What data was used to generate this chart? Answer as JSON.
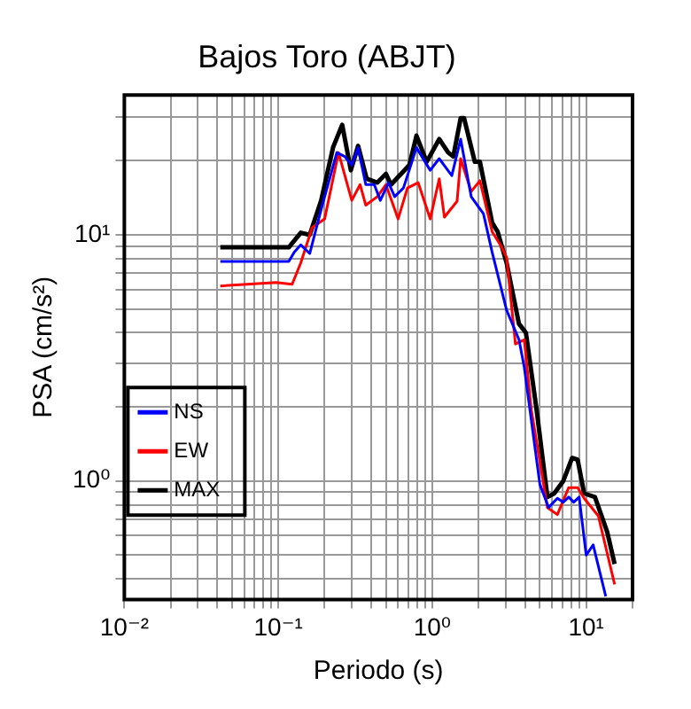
{
  "chart_data": {
    "type": "line",
    "title": "Bajos Toro (ABJT)",
    "xlabel": "Periodo (s)",
    "ylabel": "PSA (cm/s²)",
    "log": "xy",
    "grid": true,
    "legend": "bottom left",
    "marker": "none",
    "line_style": "solid",
    "xlim": [
      0.01,
      20
    ],
    "ylim": [
      0.33,
      37
    ],
    "xticks": [
      {
        "value": 0.01,
        "label": "10⁻²"
      },
      {
        "value": 0.02,
        "label": null
      },
      {
        "value": 0.03,
        "label": null
      },
      {
        "value": 0.04,
        "label": null
      },
      {
        "value": 0.05,
        "label": null
      },
      {
        "value": 0.06,
        "label": null
      },
      {
        "value": 0.07,
        "label": null
      },
      {
        "value": 0.08,
        "label": null
      },
      {
        "value": 0.09,
        "label": null
      },
      {
        "value": 0.1,
        "label": "10⁻¹"
      },
      {
        "value": 0.2,
        "label": null
      },
      {
        "value": 0.3,
        "label": null
      },
      {
        "value": 0.4,
        "label": null
      },
      {
        "value": 0.5,
        "label": null
      },
      {
        "value": 0.6,
        "label": null
      },
      {
        "value": 0.7,
        "label": null
      },
      {
        "value": 0.8,
        "label": null
      },
      {
        "value": 0.9,
        "label": null
      },
      {
        "value": 1,
        "label": "10⁰"
      },
      {
        "value": 2,
        "label": null
      },
      {
        "value": 3,
        "label": null
      },
      {
        "value": 4,
        "label": null
      },
      {
        "value": 5,
        "label": null
      },
      {
        "value": 6,
        "label": null
      },
      {
        "value": 7,
        "label": null
      },
      {
        "value": 8,
        "label": null
      },
      {
        "value": 9,
        "label": null
      },
      {
        "value": 10,
        "label": "10¹"
      },
      {
        "value": 20,
        "label": null
      }
    ],
    "yticks": [
      {
        "value": 0.4,
        "label": null
      },
      {
        "value": 0.5,
        "label": null
      },
      {
        "value": 0.6,
        "label": null
      },
      {
        "value": 0.7,
        "label": null
      },
      {
        "value": 0.8,
        "label": null
      },
      {
        "value": 0.9,
        "label": null
      },
      {
        "value": 1,
        "label": "10⁰"
      },
      {
        "value": 2,
        "label": null
      },
      {
        "value": 3,
        "label": null
      },
      {
        "value": 4,
        "label": null
      },
      {
        "value": 5,
        "label": null
      },
      {
        "value": 6,
        "label": null
      },
      {
        "value": 7,
        "label": null
      },
      {
        "value": 8,
        "label": null
      },
      {
        "value": 9,
        "label": null
      },
      {
        "value": 10,
        "label": "10¹"
      },
      {
        "value": 20,
        "label": null
      },
      {
        "value": 30,
        "label": null
      }
    ],
    "series": [
      {
        "name": "NS",
        "color": "#0000ff",
        "x": [
          0.042,
          0.117,
          0.127,
          0.14,
          0.16,
          0.19,
          0.24,
          0.27,
          0.3,
          0.33,
          0.37,
          0.42,
          0.46,
          0.52,
          0.57,
          0.65,
          0.79,
          0.97,
          1.11,
          1.34,
          1.53,
          1.79,
          2.15,
          2.45,
          3.04,
          3.66,
          3.96,
          5.0,
          5.7,
          6.5,
          7.1,
          7.7,
          8.3,
          9.0,
          10.0,
          11.1,
          13.4
        ],
        "values": [
          7.8,
          7.8,
          8.5,
          9.1,
          8.4,
          12.7,
          21.6,
          20.8,
          19.2,
          22.6,
          16,
          16,
          13.8,
          16.3,
          14.3,
          15.5,
          22.6,
          18.3,
          20.4,
          17.4,
          24.5,
          14.3,
          12.2,
          8.5,
          4.95,
          3.75,
          2.9,
          0.97,
          0.78,
          0.85,
          0.82,
          0.86,
          0.82,
          0.86,
          0.5,
          0.55,
          0.34
        ]
      },
      {
        "name": "EW",
        "color": "#ff0000",
        "x": [
          0.042,
          0.097,
          0.123,
          0.14,
          0.166,
          0.2,
          0.246,
          0.3,
          0.34,
          0.37,
          0.44,
          0.5,
          0.6,
          0.69,
          0.81,
          0.97,
          1.11,
          1.2,
          1.45,
          1.53,
          1.79,
          2.04,
          2.45,
          2.8,
          3.04,
          3.47,
          3.96,
          4.4,
          5.6,
          6.5,
          7.7,
          8.8,
          9.7,
          12.0,
          15.3
        ],
        "values": [
          6.2,
          6.4,
          6.3,
          7.7,
          10.7,
          11.6,
          21.6,
          13.8,
          16,
          13.2,
          14.3,
          16,
          11.6,
          15.5,
          16.3,
          11.6,
          16.9,
          11.8,
          13.7,
          20.4,
          15,
          16.6,
          10.3,
          9,
          8.1,
          3.6,
          3.75,
          1.95,
          0.78,
          0.73,
          0.94,
          0.94,
          0.85,
          0.72,
          0.38
        ]
      },
      {
        "name": "MAX",
        "color": "#000000",
        "x": [
          0.042,
          0.117,
          0.14,
          0.16,
          0.19,
          0.227,
          0.26,
          0.296,
          0.33,
          0.375,
          0.44,
          0.5,
          0.54,
          0.71,
          0.79,
          0.92,
          1.11,
          1.27,
          1.37,
          1.53,
          1.61,
          1.89,
          2.04,
          2.45,
          2.66,
          3.04,
          3.66,
          4.06,
          4.76,
          5.6,
          6.2,
          7.1,
          8.1,
          8.8,
          9.7,
          11.4,
          13.7,
          15.3
        ],
        "values": [
          8.9,
          8.9,
          10.2,
          10,
          13.8,
          22.7,
          28,
          18.3,
          23,
          16.9,
          16.3,
          17.7,
          16,
          19.2,
          25.3,
          19.8,
          24.5,
          21.6,
          20.8,
          29.8,
          29.8,
          19.8,
          19.8,
          11.2,
          10.3,
          7.7,
          4.35,
          4.0,
          1.95,
          0.86,
          0.89,
          1.0,
          1.24,
          1.22,
          0.89,
          0.86,
          0.62,
          0.46
        ]
      }
    ]
  }
}
